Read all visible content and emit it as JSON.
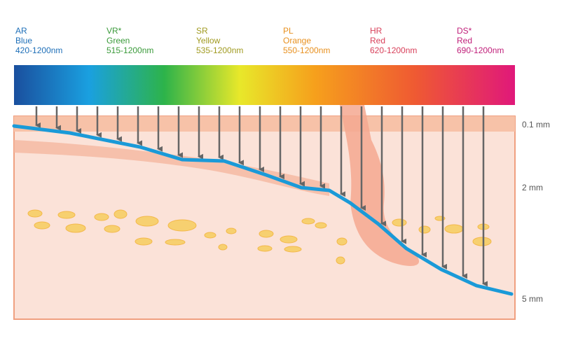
{
  "filters": [
    {
      "code": "AR",
      "color": "Blue",
      "range": "420-1200nm"
    },
    {
      "code": "VR*",
      "color": "Green",
      "range": "515-1200nm"
    },
    {
      "code": "SR",
      "color": "Yellow",
      "range": "535-1200nm"
    },
    {
      "code": "PL",
      "color": "Orange",
      "range": "550-1200nm"
    },
    {
      "code": "HR",
      "color": "Red",
      "range": "620-1200nm"
    },
    {
      "code": "DS*",
      "color": "Red",
      "range": "690-1200nm"
    }
  ],
  "depths": [
    "0.1 mm",
    "2 mm",
    "5 mm"
  ]
}
